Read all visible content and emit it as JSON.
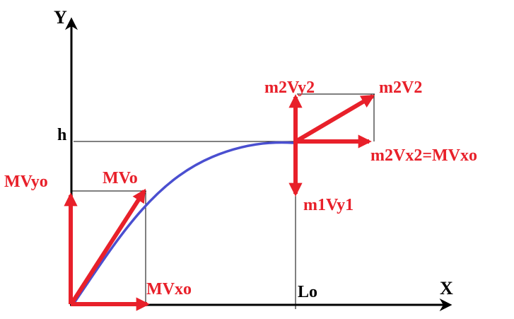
{
  "diagram": {
    "axes": {
      "y_label": "Y",
      "x_label": "X"
    },
    "labels": {
      "h": "h",
      "lo": "Lo",
      "mv0": "MVo",
      "mvy0": "MVyo",
      "mvx0": "MVxo",
      "m2vy2": "m2Vy2",
      "m2v2": "m2V2",
      "m2vx2": "m2Vx2=MVxo",
      "m1vy1": "m1Vy1"
    },
    "colors": {
      "axis": "#000000",
      "guide": "#000000",
      "vector": "#e8202a",
      "trajectory": "#4a4fd0",
      "label_red": "#e8202a",
      "label_black": "#000000"
    }
  }
}
